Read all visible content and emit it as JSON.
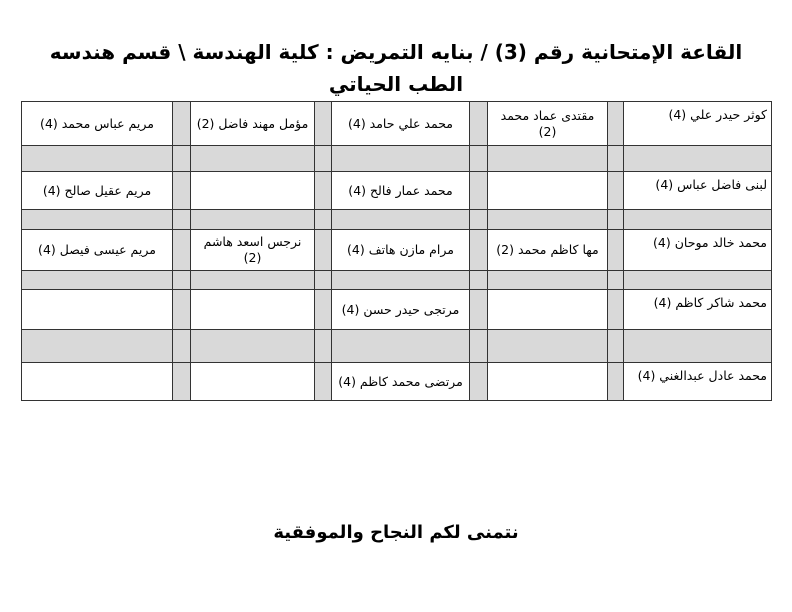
{
  "title": "القاعة الإمتحانية رقم (3) / بنايه التمريض : كلية الهندسة \\ قسم هندسه الطب الحياتي",
  "rows": [
    [
      "كوثر حيدر علي (4)",
      "مقتدى عماد محمد (2)",
      "محمد علي حامد (4)",
      "مؤمل مهند فاضل (2)",
      "مريم عباس محمد (4)"
    ],
    [
      "لبنى فاضل عباس (4)",
      "",
      "محمد عمار فالح (4)",
      "",
      "مريم عقيل صالح (4)"
    ],
    [
      "محمد خالد موحان (4)",
      "مها كاظم محمد (2)",
      "مرام مازن هاتف (4)",
      "نرجس اسعد هاشم (2)",
      "مريم عيسى فيصل (4)"
    ],
    [
      "محمد شاكر كاظم (4)",
      "",
      "مرتجى حيدر حسن (4)",
      "",
      ""
    ],
    [
      "محمد عادل عبدالغني (4)",
      "",
      "مرتضى محمد كاظم (4)",
      "",
      ""
    ]
  ],
  "footer": "نتمنى لكم النجاح والموفقية",
  "colors": {
    "separator_gray": "#d9d9d9"
  }
}
